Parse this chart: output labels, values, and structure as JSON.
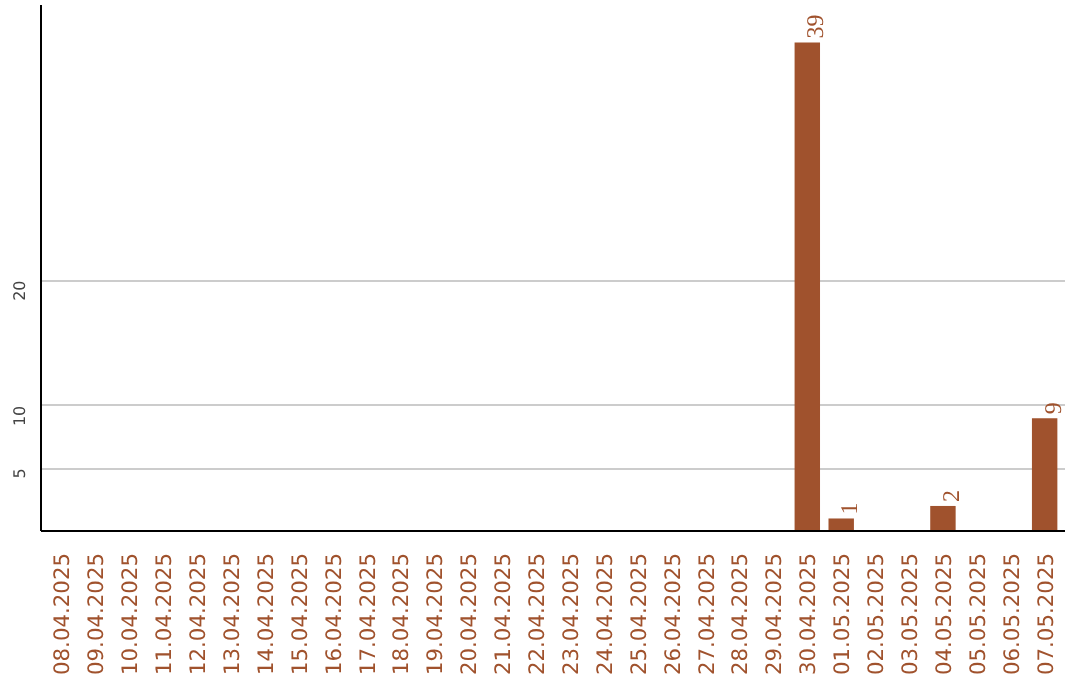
{
  "chart_data": {
    "type": "bar",
    "categories": [
      "08.04.2025",
      "09.04.2025",
      "10.04.2025",
      "11.04.2025",
      "12.04.2025",
      "13.04.2025",
      "14.04.2025",
      "15.04.2025",
      "16.04.2025",
      "17.04.2025",
      "18.04.2025",
      "19.04.2025",
      "20.04.2025",
      "21.04.2025",
      "22.04.2025",
      "23.04.2025",
      "24.04.2025",
      "25.04.2025",
      "26.04.2025",
      "27.04.2025",
      "28.04.2025",
      "29.04.2025",
      "30.04.2025",
      "01.05.2025",
      "02.05.2025",
      "03.05.2025",
      "04.05.2025",
      "05.05.2025",
      "06.05.2025",
      "07.05.2025"
    ],
    "values": [
      0,
      0,
      0,
      0,
      0,
      0,
      0,
      0,
      0,
      0,
      0,
      0,
      0,
      0,
      0,
      0,
      0,
      0,
      0,
      0,
      0,
      0,
      39,
      1,
      0,
      0,
      2,
      0,
      0,
      9
    ],
    "value_labels": [
      null,
      null,
      null,
      null,
      null,
      null,
      null,
      null,
      null,
      null,
      null,
      null,
      null,
      null,
      null,
      null,
      null,
      null,
      null,
      null,
      null,
      null,
      "39",
      "1",
      null,
      null,
      "2",
      null,
      null,
      "9"
    ],
    "color": "#a0522d",
    "ylim": [
      0,
      42
    ],
    "yticks": [
      5,
      10,
      20
    ],
    "grid": "y"
  }
}
